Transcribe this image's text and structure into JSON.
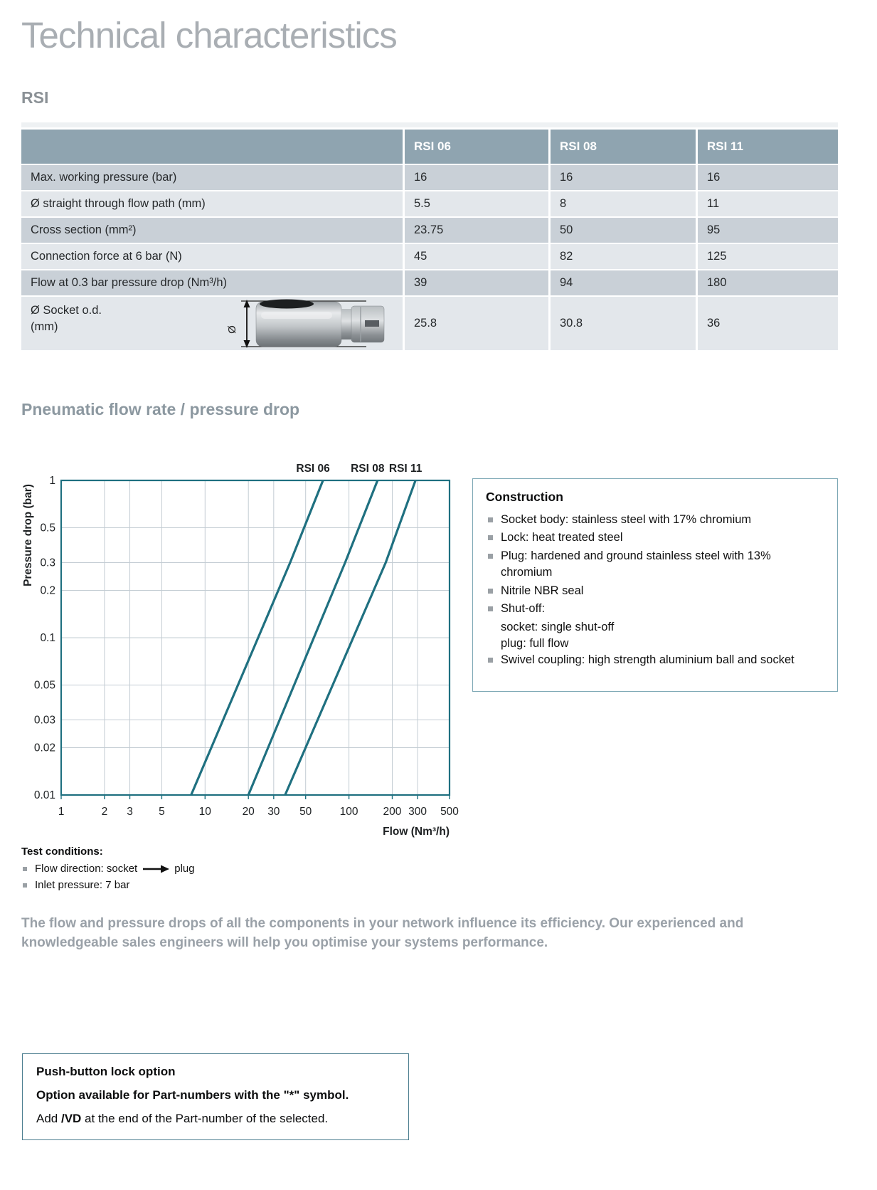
{
  "page": {
    "title": "Technical characteristics"
  },
  "rsi_section": {
    "heading": "RSI"
  },
  "table": {
    "columns": [
      "RSI 06",
      "RSI 08",
      "RSI 11"
    ],
    "rows": [
      {
        "label_lines": [
          "Max. working pressure (bar)"
        ],
        "values": [
          "16",
          "16",
          "16"
        ]
      },
      {
        "label_lines": [
          "Ø straight through flow path (mm)"
        ],
        "values": [
          "5.5",
          "8",
          "11"
        ]
      },
      {
        "label_lines": [
          "Cross section (mm²)"
        ],
        "values": [
          "23.75",
          "50",
          "95"
        ]
      },
      {
        "label_lines": [
          "Connection force at 6 bar (N)"
        ],
        "values": [
          "45",
          "82",
          "125"
        ]
      },
      {
        "label_lines": [
          "Flow at 0.3 bar pressure drop (Nm³/h)"
        ],
        "values": [
          "39",
          "94",
          "180"
        ]
      },
      {
        "label_lines": [
          "Ø Socket o.d.",
          "(mm)"
        ],
        "values": [
          "25.8",
          "30.8",
          "36"
        ],
        "diagram": {
          "symbol": "Ø"
        }
      }
    ]
  },
  "chart_section": {
    "heading": "Pneumatic flow rate / pressure drop"
  },
  "chart_data": {
    "type": "line",
    "x_scale": "log",
    "y_scale": "log",
    "xlabel": "Flow (Nm³/h)",
    "ylabel": "Pressure drop (bar)",
    "xlim": [
      1,
      500
    ],
    "ylim": [
      0.01,
      1
    ],
    "x_ticks": [
      1,
      2,
      3,
      5,
      10,
      20,
      30,
      50,
      100,
      200,
      300,
      500
    ],
    "y_ticks": [
      1,
      0.5,
      0.3,
      0.2,
      0.1,
      0.05,
      0.03,
      0.02,
      0.01
    ],
    "grid": true,
    "legend_position": "top",
    "line_color": "#1f7080",
    "grid_color": "#c3ccd3",
    "series": [
      {
        "name": "RSI 06",
        "points": [
          [
            8,
            0.01
          ],
          [
            39,
            0.3
          ],
          [
            66,
            1
          ]
        ]
      },
      {
        "name": "RSI 08",
        "points": [
          [
            20,
            0.01
          ],
          [
            94,
            0.3
          ],
          [
            158,
            1
          ]
        ]
      },
      {
        "name": "RSI 11",
        "points": [
          [
            36,
            0.01
          ],
          [
            180,
            0.3
          ],
          [
            290,
            1
          ]
        ]
      }
    ]
  },
  "construction": {
    "title": "Construction",
    "items": [
      {
        "text": "Socket body: stainless steel with 17% chromium"
      },
      {
        "text": "Lock: heat treated steel"
      },
      {
        "text": "Plug: hardened and ground stainless steel with 13% chromium"
      },
      {
        "text": "Nitrile NBR seal"
      },
      {
        "text": "Shut-off:",
        "sublines": [
          "socket: single shut-off",
          "plug: full flow"
        ]
      },
      {
        "text": "Swivel coupling: high strength aluminium ball and socket"
      }
    ]
  },
  "test_conditions": {
    "heading": "Test conditions:",
    "flow_direction": {
      "pre": "Flow direction: socket",
      "post": "plug"
    },
    "inlet_pressure": "Inlet pressure: 7 bar"
  },
  "note_paragraph": "The flow and pressure drops of all the components in your network influence its efficiency. Our experienced and knowledgeable sales engineers will help you optimise your systems performance.",
  "push_button_box": {
    "title": "Push-button lock option",
    "line2": "Option available for Part-numbers with the \"*\" symbol.",
    "line3_pre": "Add ",
    "line3_bold": "/VD",
    "line3_post": " at the end of the Part-number of the selected."
  },
  "colors": {
    "accent_teal": "#1f7080",
    "table_header_bg": "#8fa4b0",
    "row_dark": "#c9d0d7",
    "row_light": "#e3e7eb",
    "heading_gray": "#8c959c",
    "note_gray": "#9aa1a8"
  }
}
